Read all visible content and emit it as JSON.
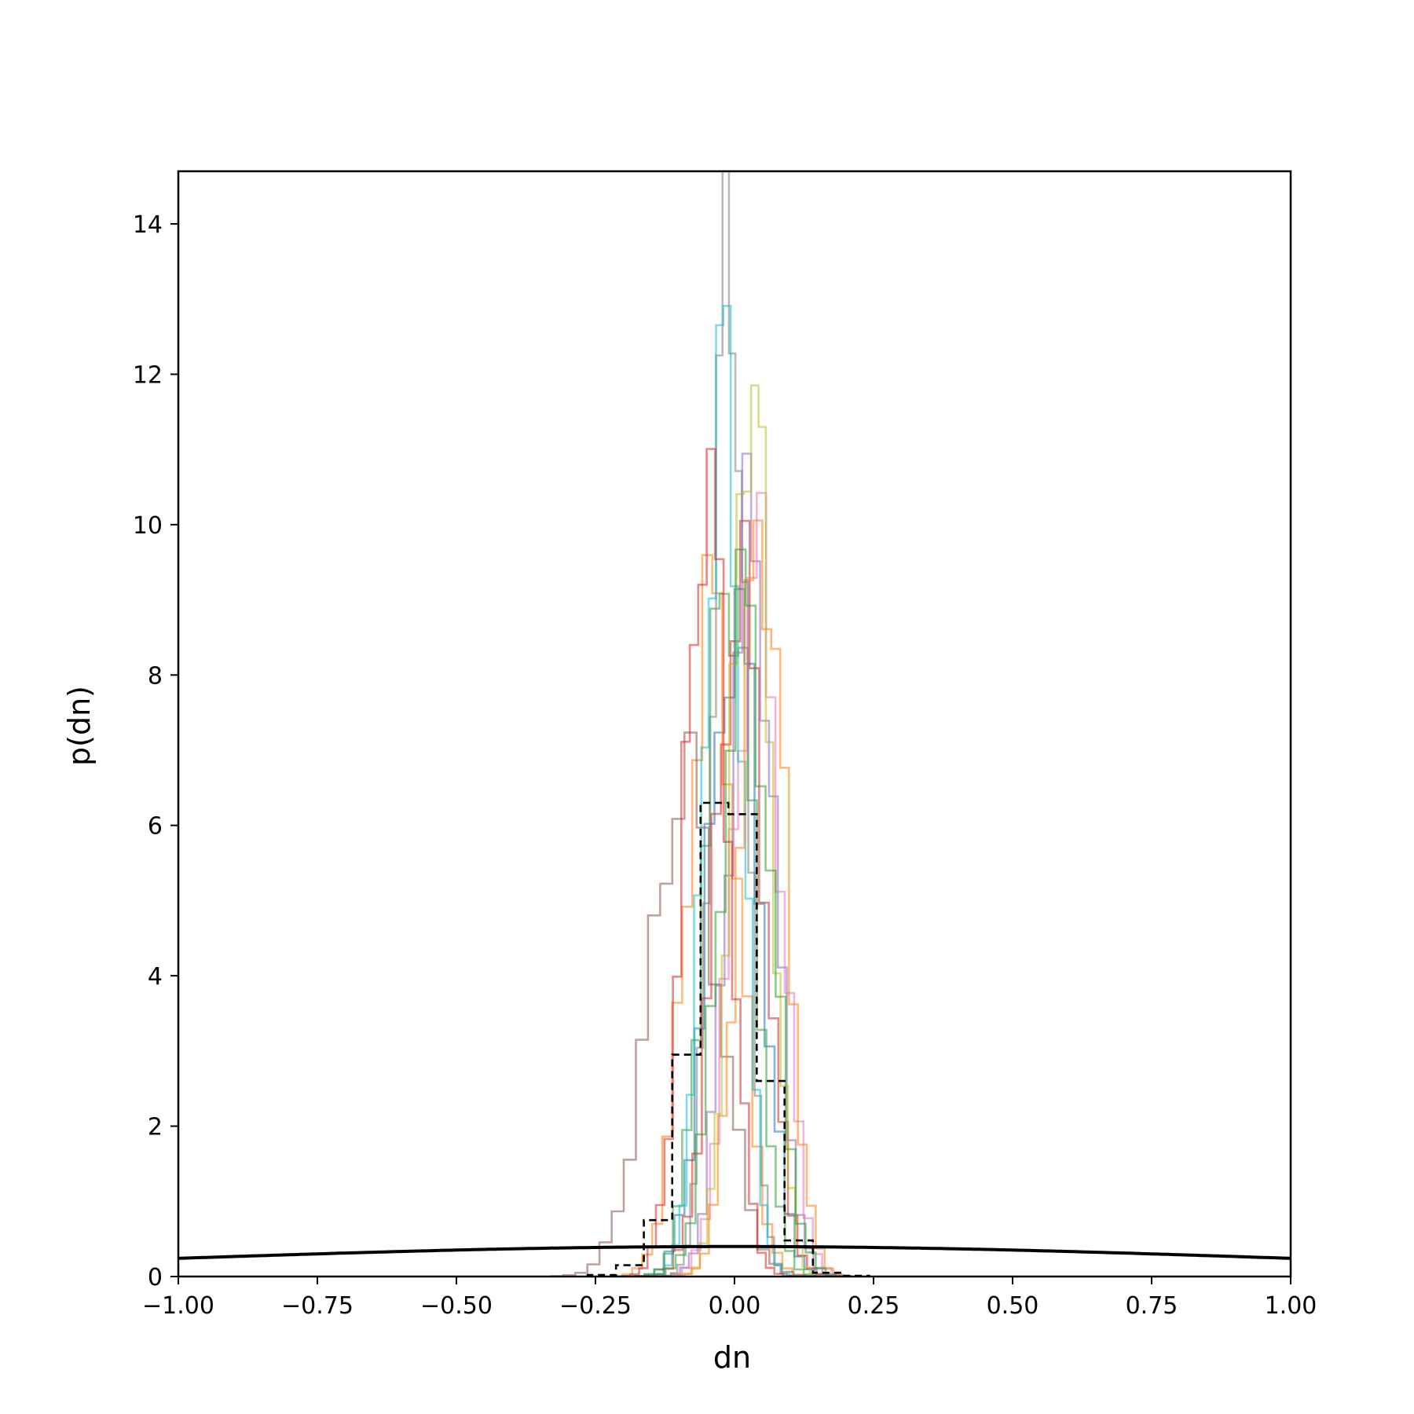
{
  "chart_data": {
    "type": "histogram",
    "title": "",
    "xlabel": "dn",
    "ylabel": "p(dn)",
    "xlim": [
      -1.0,
      1.0
    ],
    "ylim": [
      0,
      14.7
    ],
    "xticks": [
      {
        "value": -1.0,
        "label": "−1.00"
      },
      {
        "value": -0.75,
        "label": "−0.75"
      },
      {
        "value": -0.5,
        "label": "−0.50"
      },
      {
        "value": -0.25,
        "label": "−0.25"
      },
      {
        "value": 0.0,
        "label": "0.00"
      },
      {
        "value": 0.25,
        "label": "0.25"
      },
      {
        "value": 0.5,
        "label": "0.50"
      },
      {
        "value": 0.75,
        "label": "0.75"
      },
      {
        "value": 1.0,
        "label": "1.00"
      }
    ],
    "yticks": [
      {
        "value": 0,
        "label": "0"
      },
      {
        "value": 2,
        "label": "2"
      },
      {
        "value": 4,
        "label": "4"
      },
      {
        "value": 6,
        "label": "6"
      },
      {
        "value": 8,
        "label": "8"
      },
      {
        "value": 10,
        "label": "10"
      },
      {
        "value": 12,
        "label": "12"
      },
      {
        "value": 14,
        "label": "14"
      }
    ],
    "grid": false,
    "legend": "none",
    "series": [
      {
        "color": "#1f77b4",
        "mean": 0.0,
        "sd": 0.045,
        "bins": 20
      },
      {
        "color": "#ff7f0e",
        "mean": -0.04,
        "sd": 0.045,
        "bins": 20
      },
      {
        "color": "#2ca02c",
        "mean": -0.01,
        "sd": 0.042,
        "bins": 20
      },
      {
        "color": "#d62728",
        "mean": 0.01,
        "sd": 0.043,
        "bins": 20
      },
      {
        "color": "#9467bd",
        "mean": 0.03,
        "sd": 0.04,
        "bins": 20
      },
      {
        "color": "#8c564b",
        "mean": -0.09,
        "sd": 0.06,
        "bins": 22
      },
      {
        "color": "#e377c2",
        "mean": 0.04,
        "sd": 0.042,
        "bins": 20
      },
      {
        "color": "#7f7f7f",
        "mean": -0.01,
        "sd": 0.029,
        "bins": 20
      },
      {
        "color": "#bcbd22",
        "mean": 0.03,
        "sd": 0.033,
        "bins": 20
      },
      {
        "color": "#17becf",
        "mean": -0.02,
        "sd": 0.033,
        "bins": 20
      },
      {
        "color": "#ff7f0e",
        "mean": 0.05,
        "sd": 0.04,
        "bins": 20
      },
      {
        "color": "#d62728",
        "mean": -0.05,
        "sd": 0.038,
        "bins": 20
      },
      {
        "color": "#2ca02c",
        "mean": 0.02,
        "sd": 0.045,
        "bins": 20
      }
    ],
    "combined": {
      "color": "#000000",
      "style": "dashed",
      "edges": [
        -0.264,
        -0.213,
        -0.163,
        -0.112,
        -0.061,
        -0.011,
        0.04,
        0.09,
        0.141,
        0.192,
        0.242
      ],
      "values": [
        0.02,
        0.15,
        0.75,
        2.95,
        6.3,
        6.15,
        2.6,
        0.48,
        0.05,
        0.01
      ]
    },
    "prior": {
      "color": "#000000",
      "type": "normal",
      "mean": 0.0,
      "sd": 1.0
    }
  }
}
